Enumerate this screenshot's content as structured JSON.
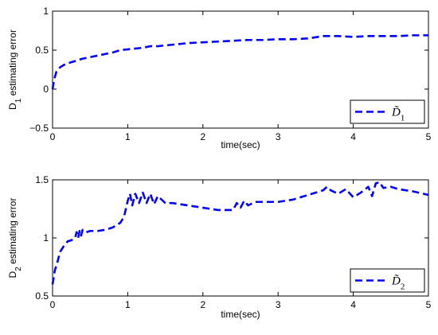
{
  "chart_data": [
    {
      "type": "line",
      "xlabel": "time(sec)",
      "ylabel_main": "D",
      "ylabel_sub": "1",
      "ylabel_rest": " estimating error",
      "xlim": [
        0,
        5
      ],
      "ylim": [
        -0.5,
        1
      ],
      "xticks": [
        0,
        1,
        2,
        3,
        4,
        5
      ],
      "yticks": [
        -0.5,
        0,
        0.5,
        1
      ],
      "ytick_labels": [
        "−0.5",
        "0",
        "0.5",
        "1"
      ],
      "legend_position": "lower-right",
      "series": [
        {
          "name_main": "D̃",
          "name_sub": "1",
          "color": "#0000ff",
          "x": [
            0,
            0.02,
            0.05,
            0.1,
            0.15,
            0.2,
            0.3,
            0.4,
            0.5,
            0.6,
            0.7,
            0.8,
            0.9,
            1.0,
            1.1,
            1.2,
            1.3,
            1.4,
            1.5,
            1.6,
            1.8,
            2.0,
            2.2,
            2.4,
            2.6,
            2.8,
            3.0,
            3.2,
            3.4,
            3.6,
            3.8,
            4.0,
            4.2,
            4.4,
            4.6,
            4.8,
            5.0
          ],
          "y": [
            0.0,
            0.12,
            0.22,
            0.28,
            0.31,
            0.33,
            0.36,
            0.39,
            0.41,
            0.43,
            0.45,
            0.47,
            0.5,
            0.51,
            0.52,
            0.53,
            0.55,
            0.55,
            0.56,
            0.57,
            0.59,
            0.6,
            0.61,
            0.62,
            0.63,
            0.63,
            0.64,
            0.64,
            0.65,
            0.68,
            0.68,
            0.67,
            0.68,
            0.68,
            0.68,
            0.69,
            0.69
          ]
        }
      ]
    },
    {
      "type": "line",
      "xlabel": "time(sec)",
      "ylabel_main": "D",
      "ylabel_sub": "2",
      "ylabel_rest": " estimating error",
      "xlim": [
        0,
        5
      ],
      "ylim": [
        0.5,
        1.5
      ],
      "xticks": [
        0,
        1,
        2,
        3,
        4,
        5
      ],
      "yticks": [
        0.5,
        1,
        1.5
      ],
      "ytick_labels": [
        "0.5",
        "1",
        "1.5"
      ],
      "legend_position": "lower-right",
      "series": [
        {
          "name_main": "D̃",
          "name_sub": "2",
          "color": "#0000ff",
          "x": [
            0,
            0.03,
            0.06,
            0.1,
            0.15,
            0.2,
            0.25,
            0.3,
            0.32,
            0.34,
            0.36,
            0.38,
            0.4,
            0.45,
            0.5,
            0.55,
            0.6,
            0.7,
            0.8,
            0.9,
            0.95,
            1.0,
            1.03,
            1.06,
            1.1,
            1.15,
            1.2,
            1.25,
            1.3,
            1.35,
            1.4,
            1.5,
            1.6,
            1.8,
            2.0,
            2.2,
            2.4,
            2.45,
            2.5,
            2.55,
            2.6,
            2.7,
            2.8,
            3.0,
            3.2,
            3.4,
            3.6,
            3.65,
            3.7,
            3.8,
            3.9,
            4.0,
            4.1,
            4.2,
            4.25,
            4.3,
            4.35,
            4.4,
            4.5,
            4.6,
            4.8,
            5.0
          ],
          "y": [
            0.6,
            0.72,
            0.78,
            0.88,
            0.93,
            0.97,
            0.98,
            1.0,
            1.05,
            1.0,
            1.06,
            1.02,
            1.07,
            1.05,
            1.06,
            1.06,
            1.06,
            1.07,
            1.09,
            1.13,
            1.18,
            1.32,
            1.38,
            1.28,
            1.38,
            1.3,
            1.39,
            1.3,
            1.38,
            1.29,
            1.36,
            1.3,
            1.3,
            1.28,
            1.26,
            1.24,
            1.24,
            1.3,
            1.26,
            1.32,
            1.28,
            1.31,
            1.31,
            1.31,
            1.33,
            1.37,
            1.41,
            1.44,
            1.41,
            1.38,
            1.42,
            1.35,
            1.39,
            1.44,
            1.36,
            1.47,
            1.48,
            1.43,
            1.44,
            1.42,
            1.4,
            1.37
          ]
        }
      ]
    }
  ]
}
